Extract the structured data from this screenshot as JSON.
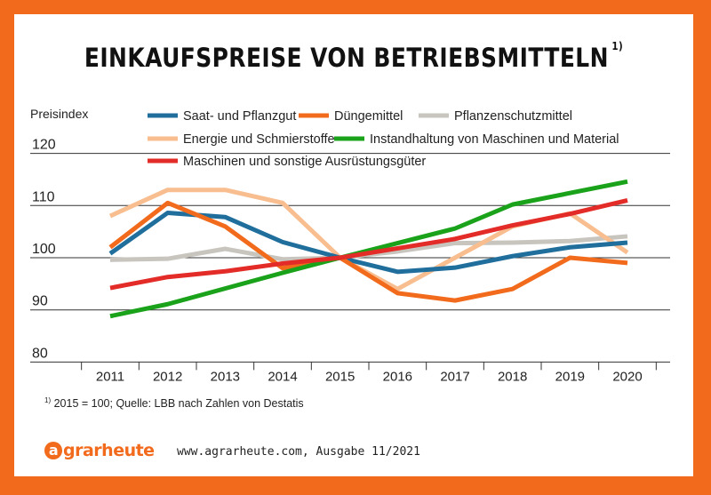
{
  "header": {
    "title": "EINKAUFSPREISE VON BETRIEBSMITTELN",
    "title_note": "1)"
  },
  "footer": {
    "footnote_marker": "1)",
    "footnote_text": " 2015 = 100; Quelle:  LBB nach Zahlen von Destatis",
    "brand_initial": "a",
    "brand_rest": "grarheute",
    "source": "www.agrarheute.com,  Ausgabe 11/2021"
  },
  "colors": {
    "frame": "#f26a1b",
    "grid": "#333333"
  },
  "chart_data": {
    "type": "line",
    "ylabel": "Preisindex",
    "ylim": [
      80,
      120
    ],
    "yticks": [
      80,
      90,
      100,
      110,
      120
    ],
    "categories": [
      "2011",
      "2012",
      "2013",
      "2014",
      "2015",
      "2016",
      "2017",
      "2018",
      "2019",
      "2020"
    ],
    "legend_placement": "top",
    "grid": "horizontal",
    "series": [
      {
        "name": "Saat- und Pflanzgut",
        "color": "#1f6e9c",
        "values": [
          100.8,
          108.6,
          107.8,
          103,
          100,
          97.3,
          98.1,
          100.3,
          102.0,
          102.9
        ]
      },
      {
        "name": "Düngemittel",
        "color": "#f26a1b",
        "values": [
          102,
          110.5,
          106,
          98,
          100,
          93.2,
          91.8,
          94,
          100,
          99
        ]
      },
      {
        "name": "Pflanzenschutzmittel",
        "color": "#c8c5bf",
        "values": [
          99.6,
          99.8,
          101.7,
          99.7,
          100,
          101.2,
          102.8,
          102.9,
          103.2,
          104.1
        ]
      },
      {
        "name": "Energie und Schmierstoffe",
        "color": "#f8be8f",
        "values": [
          108,
          113,
          113,
          110.5,
          100,
          94,
          100,
          106,
          108.5,
          101
        ]
      },
      {
        "name": "Instandhaltung von Maschinen und Material",
        "color": "#1aa31a",
        "values": [
          88.8,
          91.1,
          94.1,
          97.1,
          100,
          102.8,
          105.6,
          110.2,
          112.4,
          114.6
        ]
      },
      {
        "name": "Maschinen und sonstige Ausrüstungsgüter",
        "color": "#e32b27",
        "values": [
          94.2,
          96.3,
          97.4,
          98.9,
          100,
          101.8,
          103.6,
          106.2,
          108.4,
          111
        ]
      }
    ]
  }
}
